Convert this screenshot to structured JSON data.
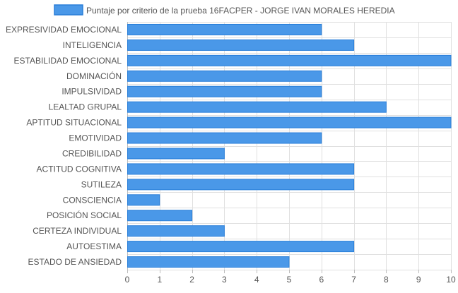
{
  "chart_data": {
    "type": "bar",
    "orientation": "horizontal",
    "categories": [
      "EXPRESIVIDAD EMOCIONAL",
      "INTELIGENCIA",
      "ESTABILIDAD EMOCIONAL",
      "DOMINACIÓN",
      "IMPULSIVIDAD",
      "LEALTAD GRUPAL",
      "APTITUD SITUACIONAL",
      "EMOTIVIDAD",
      "CREDIBILIDAD",
      "ACTITUD COGNITIVA",
      "SUTILEZA",
      "CONSCIENCIA",
      "POSICIÓN SOCIAL",
      "CERTEZA INDIVIDUAL",
      "AUTOESTIMA",
      "ESTADO DE ANSIEDAD"
    ],
    "series": [
      {
        "name": "Puntaje por criterio de la prueba 16FACPER - JORGE IVAN MORALES HEREDIA",
        "values": [
          6,
          7,
          10,
          6,
          6,
          8,
          10,
          6,
          3,
          7,
          7,
          1,
          2,
          3,
          7,
          5
        ]
      }
    ],
    "xticks": [
      "0",
      "1",
      "2",
      "3",
      "4",
      "5",
      "6",
      "7",
      "8",
      "9",
      "10"
    ],
    "xlim": [
      0,
      10
    ],
    "grid": true,
    "legend_position": "top-center",
    "colors": {
      "bar_fill": "#4a98e8",
      "bar_stroke": "#2a7fd9",
      "grid": "#e0e0e0",
      "axis": "#bdbdbd",
      "text": "#555555"
    }
  }
}
